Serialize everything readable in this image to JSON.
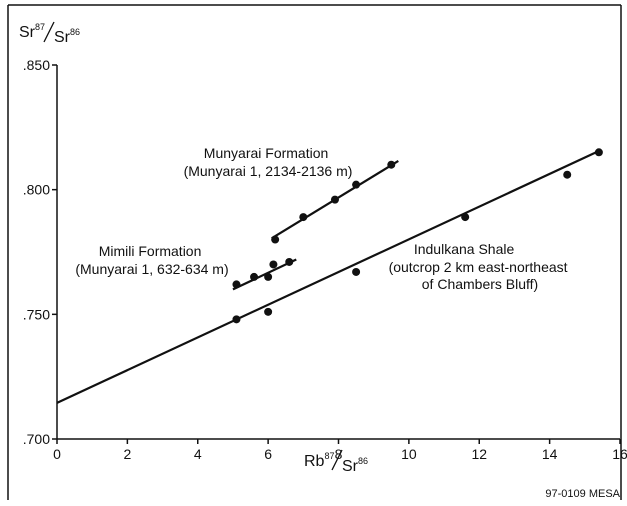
{
  "chart_data": {
    "type": "scatter",
    "ylabel": {
      "base1": "Sr",
      "sup1": "87",
      "base2": "Sr",
      "sup2": "86"
    },
    "xlabel": {
      "base1": "Rb",
      "sup1": "87",
      "base2": "Sr",
      "sup2": "86"
    },
    "xlim": [
      0,
      16
    ],
    "ylim": [
      0.7,
      0.85
    ],
    "x_ticks": [
      {
        "value": 0,
        "label": "0"
      },
      {
        "value": 2,
        "label": "2"
      },
      {
        "value": 4,
        "label": "4"
      },
      {
        "value": 6,
        "label": "6"
      },
      {
        "value": 8,
        "label": "8"
      },
      {
        "value": 10,
        "label": "10"
      },
      {
        "value": 12,
        "label": "12"
      },
      {
        "value": 14,
        "label": "14"
      },
      {
        "value": 16,
        "label": "16"
      }
    ],
    "y_ticks": [
      {
        "value": 0.7,
        "label": ".700"
      },
      {
        "value": 0.75,
        "label": ".750"
      },
      {
        "value": 0.8,
        "label": ".800"
      },
      {
        "value": 0.85,
        "label": ".850"
      }
    ],
    "series": [
      {
        "name": "Munyarai Formation",
        "label_lines": [
          "Munyarai Formation",
          "(Munyarai 1, 2134-2136 m)"
        ],
        "points": [
          [
            6.2,
            0.78
          ],
          [
            7.0,
            0.789
          ],
          [
            7.9,
            0.796
          ],
          [
            8.5,
            0.802
          ],
          [
            9.5,
            0.81
          ]
        ],
        "fit": [
          [
            6.1,
            0.7805
          ],
          [
            9.7,
            0.8115
          ]
        ]
      },
      {
        "name": "Mimili Formation",
        "label_lines": [
          "Mimili Formation",
          "(Munyarai 1, 632-634 m)"
        ],
        "points": [
          [
            5.1,
            0.762
          ],
          [
            5.6,
            0.765
          ],
          [
            6.0,
            0.765
          ],
          [
            6.15,
            0.77
          ],
          [
            6.6,
            0.771
          ]
        ],
        "fit": [
          [
            5.0,
            0.76
          ],
          [
            6.8,
            0.772
          ]
        ]
      },
      {
        "name": "Indulkana Shale",
        "label_lines": [
          "Indulkana Shale",
          "(outcrop 2 km east-northeast",
          "of Chambers Bluff)"
        ],
        "points": [
          [
            5.1,
            0.748
          ],
          [
            6.0,
            0.751
          ],
          [
            8.5,
            0.767
          ],
          [
            11.6,
            0.789
          ],
          [
            14.5,
            0.806
          ],
          [
            15.4,
            0.815
          ]
        ],
        "fit": [
          [
            0.0,
            0.7145
          ],
          [
            15.4,
            0.8155
          ]
        ]
      }
    ],
    "figure_id": "97-0109 MESA"
  }
}
